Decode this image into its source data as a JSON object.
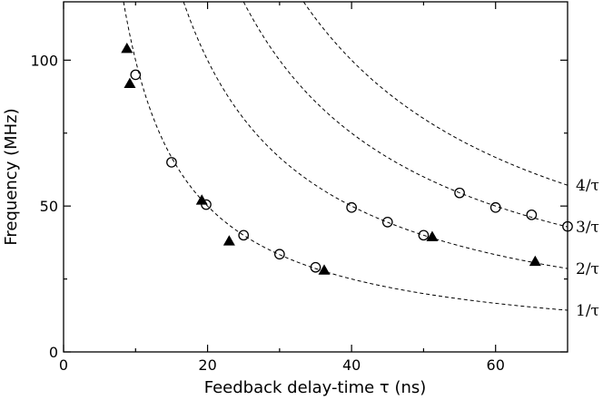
{
  "chart_data": {
    "type": "scatter",
    "xlabel": "Feedback delay-time τ (ns)",
    "ylabel": "Frequency (MHz)",
    "xlim": [
      0,
      70
    ],
    "ylim": [
      0,
      120
    ],
    "xticks": [
      0,
      20,
      40,
      60
    ],
    "yticks": [
      0,
      50,
      100
    ],
    "grid": false,
    "curves": [
      {
        "label": "1/τ",
        "multiplier": 1
      },
      {
        "label": "2/τ",
        "multiplier": 2
      },
      {
        "label": "3/τ",
        "multiplier": 3
      },
      {
        "label": "4/τ",
        "multiplier": 4
      }
    ],
    "series": [
      {
        "marker": "open-circle",
        "points": [
          [
            10,
            95
          ],
          [
            15,
            65
          ],
          [
            19.8,
            50.5
          ],
          [
            25,
            40
          ],
          [
            30,
            33.5
          ],
          [
            35,
            29
          ],
          [
            40,
            49.5
          ],
          [
            45,
            44.5
          ],
          [
            50,
            40
          ],
          [
            55,
            54.5
          ],
          [
            60,
            49.5
          ],
          [
            65,
            47
          ],
          [
            70,
            43
          ]
        ]
      },
      {
        "marker": "filled-triangle",
        "points": [
          [
            8.8,
            104
          ],
          [
            9.2,
            92
          ],
          [
            19.2,
            52
          ],
          [
            23,
            38
          ],
          [
            36.2,
            28
          ],
          [
            51.2,
            39.5
          ],
          [
            65.5,
            31
          ]
        ]
      }
    ]
  }
}
